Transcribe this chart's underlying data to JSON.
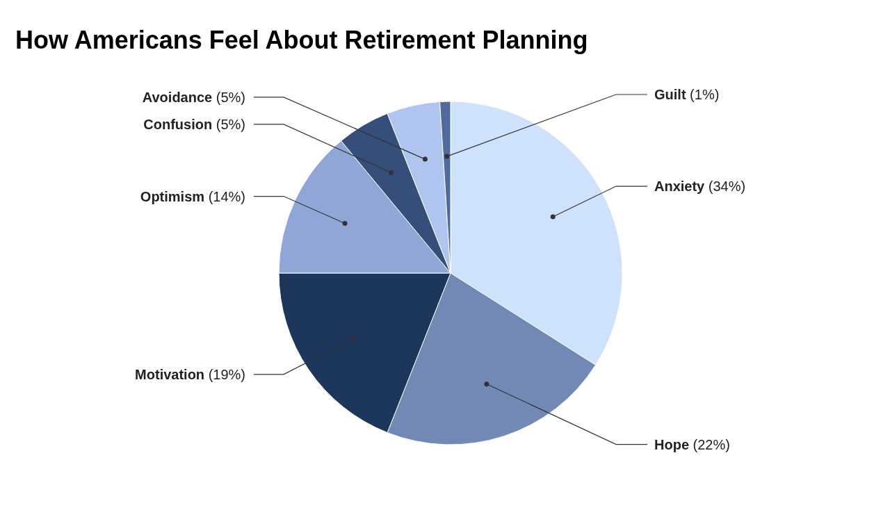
{
  "chart_data": {
    "type": "pie",
    "title": "How Americans Feel About Retirement Planning",
    "categories": [
      "Anxiety",
      "Hope",
      "Motivation",
      "Optimism",
      "Confusion",
      "Avoidance",
      "Guilt"
    ],
    "values": [
      34,
      22,
      19,
      14,
      5,
      5,
      1
    ],
    "value_labels": [
      "(34%)",
      "(22%)",
      "(19%)",
      "(14%)",
      "(5%)",
      "(5%)",
      "(1%)"
    ],
    "colors": [
      "#cfe2fb",
      "#7289b5",
      "#1c365c",
      "#8fa6d6",
      "#364f7a",
      "#b0c4f0",
      "#4f6a9c"
    ]
  }
}
